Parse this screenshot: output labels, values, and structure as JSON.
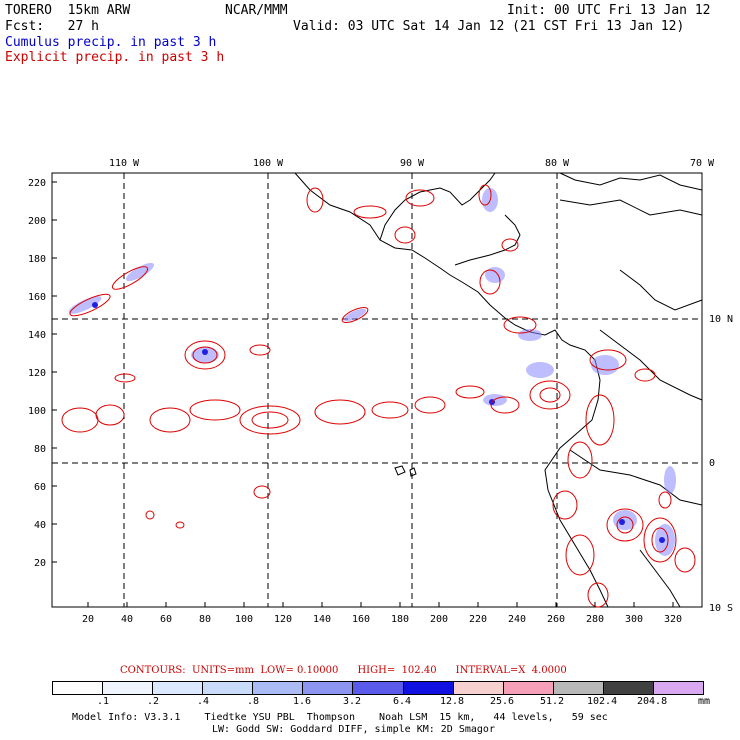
{
  "header": {
    "model": "TORERO  15km ARW",
    "org": "NCAR/MMM",
    "init": "Init: 00 UTC Fri 13 Jan 12",
    "fcst": "Fcst:   27 h",
    "valid": "Valid: 03 UTC Sat 14 Jan 12 (21 CST Fri 13 Jan 12)",
    "line_cumulus": "Cumulus precip. in past 3 h",
    "line_explicit": "Explicit precip. in past 3 h"
  },
  "map": {
    "lon_labels": [
      "110 W",
      "100 W",
      "90 W",
      "80 W",
      "70 W"
    ],
    "lat_labels": [
      "10 N",
      "0",
      "10 S"
    ],
    "y_ticks": [
      "220",
      "200",
      "180",
      "160",
      "140",
      "120",
      "100",
      "80",
      "60",
      "40",
      "20"
    ],
    "x_ticks": [
      "20",
      "40",
      "60",
      "80",
      "100",
      "120",
      "140",
      "160",
      "180",
      "200",
      "220",
      "240",
      "260",
      "280",
      "300",
      "320"
    ],
    "colors": {
      "coast": "#000000",
      "explicit_contour": "#dd0000",
      "cumulus_fill": "#8888ff",
      "grid": "#000000"
    }
  },
  "contours": "CONTOURS:  UNITS=mm  LOW= 0.10000      HIGH=  102.40      INTERVAL=X  4.0000",
  "colorbar": {
    "colors": [
      "#ffffff",
      "#f0f4ff",
      "#dce8ff",
      "#c8dcfa",
      "#aabbf5",
      "#8c96f0",
      "#5a5aeb",
      "#1010e0",
      "#f7d0d0",
      "#f5a0b8",
      "#b8b8b8",
      "#404040",
      "#d8a8f0"
    ],
    "labels": [
      ".1",
      ".2",
      ".4",
      ".8",
      "1.6",
      "3.2",
      "6.4",
      "12.8",
      "25.6",
      "51.2",
      "102.4",
      "204.8"
    ],
    "unit": "mm"
  },
  "footer": {
    "line1": "Model Info: V3.3.1    Tiedtke YSU PBL  Thompson    Noah LSM  15 km,   44 levels,   59 sec",
    "line2": "LW: Godd SW: Goddard DIFF, simple KM: 2D Smagor"
  }
}
